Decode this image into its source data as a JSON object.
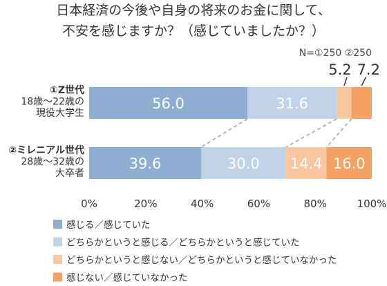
{
  "chart_data": {
    "type": "bar",
    "orientation": "horizontal",
    "stacked": true,
    "title": "日本経済の今後や自身の将来のお金に関して、\n不安を感じますか？（感じていましたか？）",
    "note": "N=①250 ②250",
    "xlim": [
      0,
      100
    ],
    "xticks": [
      "0%",
      "20%",
      "40%",
      "60%",
      "80%",
      "100%"
    ],
    "grid": false,
    "legend_position": "bottom",
    "categories": [
      {
        "label_lines": [
          "①Z世代",
          "18歳〜22歳の",
          "現役大学生"
        ]
      },
      {
        "label_lines": [
          "②ミレニアル世代",
          "28歳〜32歳の",
          "大卒者"
        ]
      }
    ],
    "series": [
      {
        "name": "感じる／感じていた",
        "color": "#8eaed1",
        "values": [
          56.0,
          39.6
        ],
        "labels": [
          "56.0",
          "39.6"
        ]
      },
      {
        "name": "どちらかというと感じる／どちらかというと感じていた",
        "color": "#bfd2e8",
        "values": [
          31.6,
          30.0
        ],
        "labels": [
          "31.6",
          "30.0"
        ]
      },
      {
        "name": "どちらかというと感じない／どちらかというと感じていなかった",
        "color": "#f9c6a0",
        "values": [
          5.2,
          14.4
        ],
        "labels": [
          "5.2",
          "14.4"
        ]
      },
      {
        "name": "感じない／感じていなかった",
        "color": "#f4a163",
        "values": [
          7.2,
          16.0
        ],
        "labels": [
          "7.2",
          "16.0"
        ]
      }
    ]
  }
}
